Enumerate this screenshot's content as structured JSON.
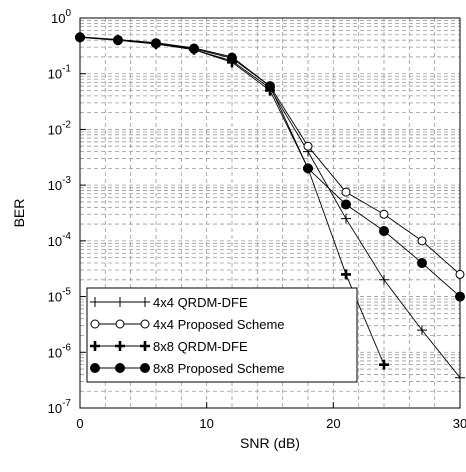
{
  "chart_data": {
    "type": "line",
    "title": "",
    "xlabel": "SNR (dB)",
    "ylabel": "BER",
    "xlim": [
      0,
      30
    ],
    "ylim": [
      1e-07,
      1
    ],
    "yscale": "log",
    "grid": true,
    "legend_position": "bottom-left",
    "x_ticks": [
      "0",
      "10",
      "20",
      "30"
    ],
    "y_ticks": [
      {
        "base": "10",
        "exp": "0"
      },
      {
        "base": "10",
        "exp": "-1"
      },
      {
        "base": "10",
        "exp": "-2"
      },
      {
        "base": "10",
        "exp": "-3"
      },
      {
        "base": "10",
        "exp": "-4"
      },
      {
        "base": "10",
        "exp": "-5"
      },
      {
        "base": "10",
        "exp": "-6"
      },
      {
        "base": "10",
        "exp": "-7"
      }
    ],
    "series": [
      {
        "name": "4x4 QRDM-DFE",
        "marker": "plus-thin",
        "x": [
          0,
          3,
          6,
          9,
          12,
          15,
          18,
          21,
          24,
          27,
          30
        ],
        "y": [
          0.45,
          0.41,
          0.35,
          0.27,
          0.17,
          0.055,
          0.004,
          0.00025,
          2e-05,
          2.5e-06,
          3.5e-07
        ]
      },
      {
        "name": "4x4 Proposed Scheme",
        "marker": "circle-open",
        "x": [
          0,
          3,
          6,
          9,
          12,
          15,
          18,
          21,
          24,
          27,
          30
        ],
        "y": [
          0.46,
          0.41,
          0.36,
          0.29,
          0.2,
          0.06,
          0.005,
          0.00075,
          0.0003,
          0.0001,
          2.5e-05
        ]
      },
      {
        "name": "8x8 QRDM-DFE",
        "marker": "plus-bold",
        "x": [
          0,
          3,
          6,
          9,
          12,
          15,
          18,
          21,
          24
        ],
        "y": [
          0.45,
          0.4,
          0.34,
          0.27,
          0.16,
          0.05,
          0.002,
          2.5e-05,
          6e-07
        ]
      },
      {
        "name": "8x8 Proposed Scheme",
        "marker": "circle-filled",
        "x": [
          0,
          3,
          6,
          9,
          12,
          15,
          18,
          21,
          24,
          27,
          30
        ],
        "y": [
          0.45,
          0.4,
          0.35,
          0.28,
          0.19,
          0.06,
          0.002,
          0.00045,
          0.00015,
          4e-05,
          1e-05
        ]
      }
    ]
  }
}
